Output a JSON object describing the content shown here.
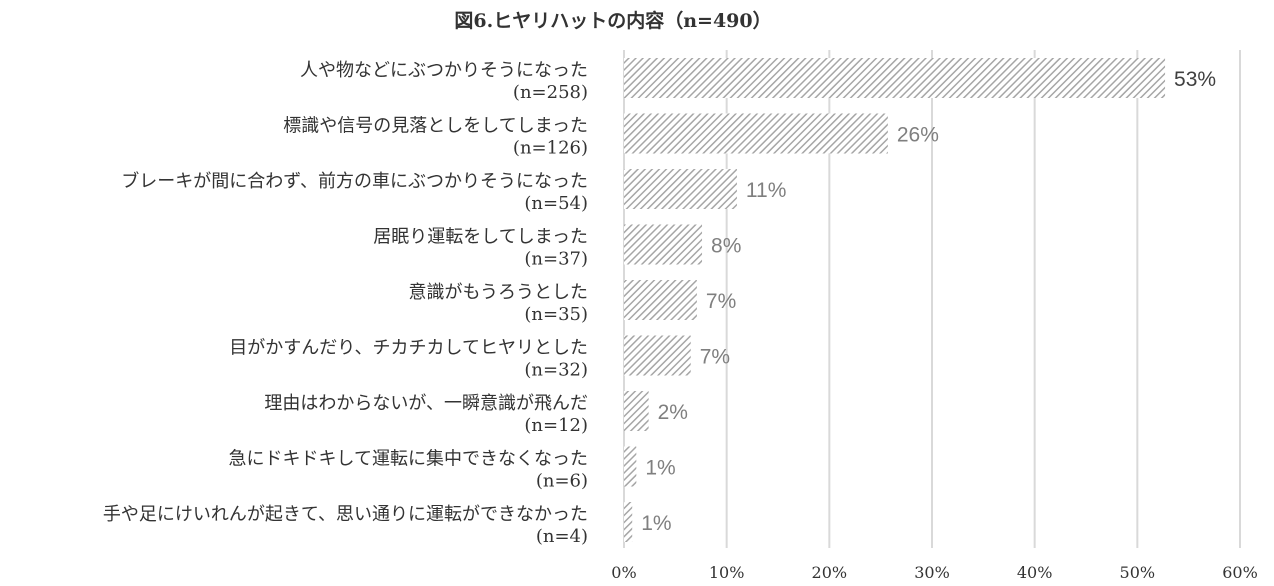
{
  "chart_data": {
    "type": "bar",
    "orientation": "horizontal",
    "title": "図6.ヒヤリハットの内容（n=490）",
    "categories": [
      {
        "label": "人や物などにぶつかりそうになった",
        "n_label": "(n=258)"
      },
      {
        "label": "標識や信号の見落としをしてしまった",
        "n_label": "(n=126)"
      },
      {
        "label": "ブレーキが間に合わず、前方の車にぶつかりそうになった",
        "n_label": "(n=54)"
      },
      {
        "label": "居眠り運転をしてしまった",
        "n_label": "(n=37)"
      },
      {
        "label": "意識がもうろうとした",
        "n_label": "(n=35)"
      },
      {
        "label": "目がかすんだり、チカチカしてヒヤリとした",
        "n_label": "(n=32)"
      },
      {
        "label": "理由はわからないが、一瞬意識が飛んだ",
        "n_label": "(n=12)"
      },
      {
        "label": "急にドキドキして運転に集中できなくなった",
        "n_label": "(n=6)"
      },
      {
        "label": "手や足にけいれんが起きて、思い通りに運転ができなかった",
        "n_label": "(n=4)"
      }
    ],
    "values": [
      52.7,
      25.7,
      11.0,
      7.6,
      7.1,
      6.5,
      2.4,
      1.2,
      0.8
    ],
    "data_labels": [
      "53%",
      "26%",
      "11%",
      "8%",
      "7%",
      "7%",
      "2%",
      "1%",
      "1%"
    ],
    "xlim": [
      0,
      60
    ],
    "x_ticks": [
      "0%",
      "10%",
      "20%",
      "30%",
      "40%",
      "50%",
      "60%"
    ],
    "grid": "vertical",
    "bar_fill": "diagonal-hatch",
    "colors": {
      "hatch": "#a6a6a6",
      "grid": "#d9d9d9",
      "text": "#333333",
      "label_gray": "#7f7f7f",
      "label_dark": "#404040"
    }
  }
}
